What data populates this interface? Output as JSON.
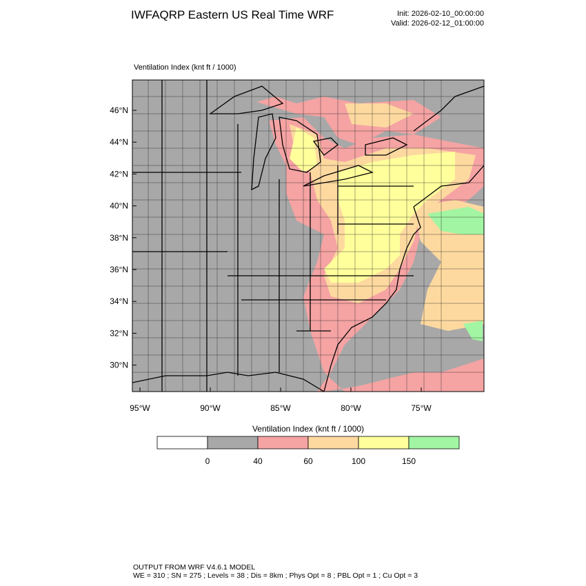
{
  "header": {
    "title": "IWFAQRP Eastern US Real Time WRF",
    "init": "Init: 2026-02-10_00:00:00",
    "valid": "Valid: 2026-02-12_01:00:00"
  },
  "map": {
    "field_label": "Ventilation Index   (knt ft / 1000)",
    "lat_ticks": [
      {
        "value": 46,
        "label": "46°N"
      },
      {
        "value": 44,
        "label": "44°N"
      },
      {
        "value": 42,
        "label": "42°N"
      },
      {
        "value": 40,
        "label": "40°N"
      },
      {
        "value": 38,
        "label": "38°N"
      },
      {
        "value": 36,
        "label": "36°N"
      },
      {
        "value": 34,
        "label": "34°N"
      },
      {
        "value": 32,
        "label": "32°N"
      },
      {
        "value": 30,
        "label": "30°N"
      }
    ],
    "lon_ticks": [
      {
        "value": -95,
        "label": "95°W"
      },
      {
        "value": -90,
        "label": "90°W"
      },
      {
        "value": -85,
        "label": "85°W"
      },
      {
        "value": -80,
        "label": "80°W"
      },
      {
        "value": -75,
        "label": "75°W"
      }
    ]
  },
  "colorbar": {
    "title": "Ventilation Index  (knt ft / 1000)",
    "levels": [
      0,
      40,
      60,
      100,
      150
    ],
    "colors": [
      "#ffffff",
      "#a8a8a8",
      "#f5a3a3",
      "#fdd9a0",
      "#ffff9c",
      "#a2f5a2"
    ]
  },
  "footer": {
    "line1": "OUTPUT FROM WRF V4.6.1 MODEL",
    "line2": "WE = 310 ; SN = 275 ; Levels = 38 ; Dis = 8km ; Phys Opt = 8 ; PBL Opt = 1 ; Cu Opt = 3"
  }
}
